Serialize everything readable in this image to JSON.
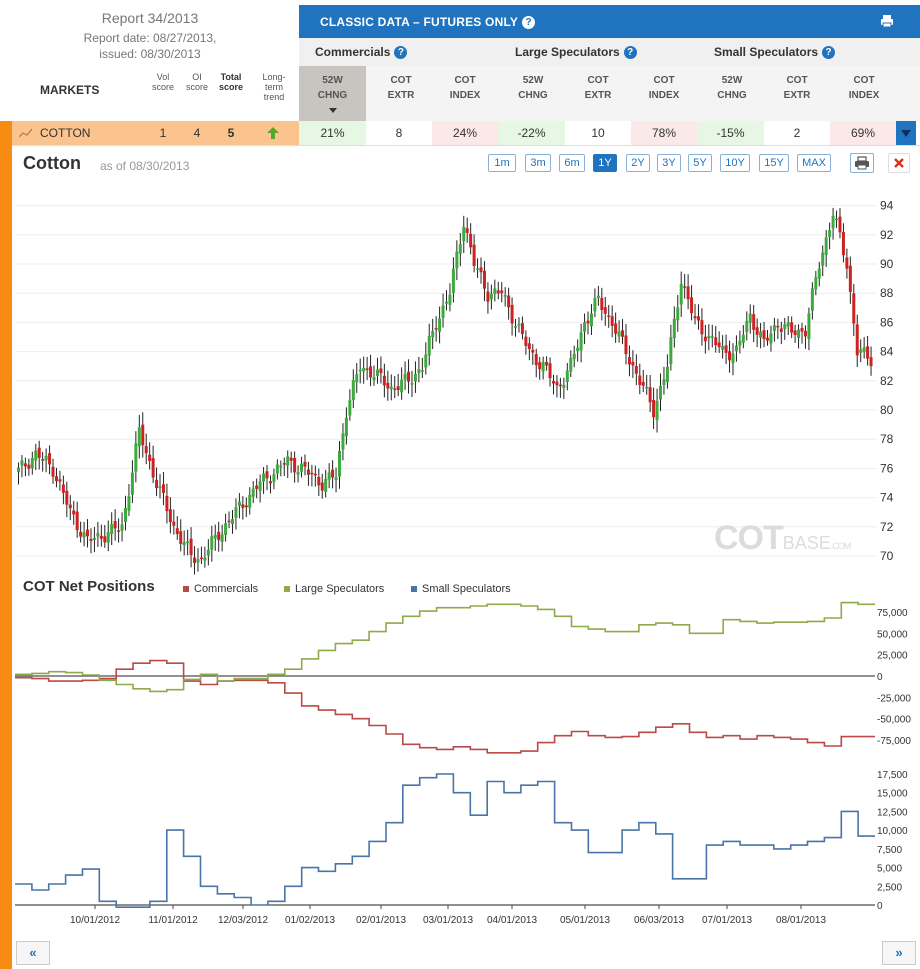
{
  "report": {
    "title": "Report 34/2013",
    "report_date": "Report date: 08/27/2013,",
    "issued": "issued: 08/30/2013"
  },
  "table": {
    "markets_label": "MARKETS",
    "vol_score": "Vol score",
    "oi_score": "OI score",
    "total_score": "Total score",
    "long_term_trend": "Long-term trend",
    "banner_title": "CLASSIC DATA – FUTURES ONLY",
    "groups": [
      "Commercials",
      "Large Speculators",
      "Small Speculators"
    ],
    "sub_52w": "52W CHNG",
    "sub_extr": "COT EXTR",
    "sub_index": "COT INDEX"
  },
  "row": {
    "market": "COTTON",
    "vol": "1",
    "oi": "4",
    "total": "5",
    "trend": "up",
    "commercials": {
      "chng": "21%",
      "extr": "8",
      "index": "24%"
    },
    "large": {
      "chng": "-22%",
      "extr": "10",
      "index": "78%"
    },
    "small": {
      "chng": "-15%",
      "extr": "2",
      "index": "69%"
    }
  },
  "chart_header": {
    "title": "Cotton",
    "as_of": "as of 08/30/2013",
    "ranges": [
      "1m",
      "3m",
      "6m",
      "1Y",
      "2Y",
      "3Y",
      "5Y",
      "10Y",
      "15Y",
      "MAX"
    ],
    "selected_range": "1Y"
  },
  "cot_header": {
    "title": "COT Net Positions",
    "legend": [
      "Commercials",
      "Large Speculators",
      "Small Speculators"
    ]
  },
  "watermark": {
    "cot": "COT",
    "base": "BASE",
    "com": ".COM"
  },
  "colors": {
    "up": "#3caa3c",
    "down": "#cc2222",
    "commercials": "#b94a48",
    "large": "#8faa4a",
    "small": "#4a74a8",
    "accent": "#1f73bf",
    "orange": "#f88b12"
  },
  "chart_data": [
    {
      "type": "candlestick",
      "title": "Cotton",
      "ylim": [
        69,
        94.5
      ],
      "yticks": [
        70,
        72,
        74,
        76,
        78,
        80,
        82,
        84,
        86,
        88,
        90,
        92,
        94
      ],
      "x_labels": [
        "10/01/2012",
        "11/01/2012",
        "12/03/2012",
        "01/02/2013",
        "02/01/2013",
        "03/01/2013",
        "04/01/2013",
        "05/01/2013",
        "06/03/2013",
        "07/01/2013",
        "08/01/2013"
      ],
      "close_anchors": [
        [
          0,
          75.8
        ],
        [
          5,
          77
        ],
        [
          10,
          76
        ],
        [
          15,
          73
        ],
        [
          20,
          71
        ],
        [
          25,
          71.5
        ],
        [
          30,
          72
        ],
        [
          35,
          78.5
        ],
        [
          40,
          75
        ],
        [
          45,
          72
        ],
        [
          50,
          70
        ],
        [
          53,
          69.8
        ],
        [
          58,
          71.5
        ],
        [
          63,
          73
        ],
        [
          70,
          75
        ],
        [
          78,
          76.5
        ],
        [
          82,
          76
        ],
        [
          88,
          75
        ],
        [
          92,
          75.5
        ],
        [
          95,
          80
        ],
        [
          99,
          83
        ],
        [
          103,
          82.5
        ],
        [
          108,
          81.5
        ],
        [
          113,
          82
        ],
        [
          117,
          83
        ],
        [
          121,
          86
        ],
        [
          125,
          88
        ],
        [
          129,
          93
        ],
        [
          132,
          90
        ],
        [
          136,
          88
        ],
        [
          140,
          88
        ],
        [
          144,
          86
        ],
        [
          148,
          84
        ],
        [
          152,
          83
        ],
        [
          156,
          81.5
        ],
        [
          160,
          83
        ],
        [
          164,
          86
        ],
        [
          168,
          87.5
        ],
        [
          172,
          86
        ],
        [
          176,
          84
        ],
        [
          180,
          82
        ],
        [
          184,
          80
        ],
        [
          188,
          83
        ],
        [
          192,
          89
        ],
        [
          196,
          86
        ],
        [
          200,
          85
        ],
        [
          204,
          84
        ],
        [
          208,
          84
        ],
        [
          212,
          86.5
        ],
        [
          216,
          84.5
        ],
        [
          220,
          86
        ],
        [
          224,
          85.3
        ],
        [
          228,
          85.5
        ],
        [
          232,
          90
        ],
        [
          236,
          93.5
        ],
        [
          240,
          90
        ],
        [
          243,
          84
        ],
        [
          247,
          83.5
        ]
      ]
    },
    {
      "type": "line",
      "title": "COT Net Positions",
      "ylim": [
        -90000,
        90000
      ],
      "yticks": [
        75000,
        50000,
        25000,
        0,
        -25000,
        -50000,
        -75000
      ],
      "series": [
        {
          "name": "Commercials",
          "values": [
            -2000,
            -3000,
            -6000,
            -6000,
            -5000,
            -3000,
            8000,
            15000,
            18000,
            15000,
            -6000,
            -10000,
            -6000,
            -5000,
            -5000,
            -8000,
            -20000,
            -35000,
            -40000,
            -45000,
            -50000,
            -58000,
            -68000,
            -80000,
            -84000,
            -86000,
            -83000,
            -86000,
            -90000,
            -90000,
            -88000,
            -78000,
            -70000,
            -65000,
            -70000,
            -72000,
            -71000,
            -66000,
            -60000,
            -56000,
            -66000,
            -72000,
            -70000,
            -74000,
            -70000,
            -72000,
            -74000,
            -78000,
            -82000,
            -71000,
            -71000
          ]
        },
        {
          "name": "Large Speculators",
          "values": [
            2000,
            3000,
            5000,
            4000,
            1000,
            -5000,
            -10000,
            -15000,
            -18000,
            -16000,
            -4000,
            2000,
            -6000,
            -3000,
            -3000,
            2000,
            8000,
            20000,
            30000,
            38000,
            42000,
            52000,
            62000,
            70000,
            76000,
            80000,
            80000,
            82000,
            84000,
            84000,
            82000,
            78000,
            70000,
            58000,
            55000,
            52000,
            52000,
            60000,
            62000,
            60000,
            50000,
            50000,
            66000,
            64000,
            62000,
            63000,
            63000,
            64000,
            68000,
            86000,
            84000
          ]
        },
        {
          "name": "Small Speculators",
          "values": [
            2800,
            2000,
            2800,
            4000,
            4800,
            500,
            -300,
            -300,
            500,
            10000,
            6500,
            2500,
            1500,
            1000,
            0,
            500,
            2500,
            5000,
            4500,
            5500,
            6500,
            8500,
            11000,
            16000,
            17000,
            17500,
            15000,
            12000,
            16500,
            15000,
            16000,
            16500,
            11000,
            10000,
            7000,
            7000,
            10000,
            11000,
            9500,
            3500,
            3500,
            8000,
            8500,
            8000,
            8000,
            7500,
            8000,
            8500,
            9000,
            12500,
            9200
          ]
        }
      ]
    }
  ]
}
